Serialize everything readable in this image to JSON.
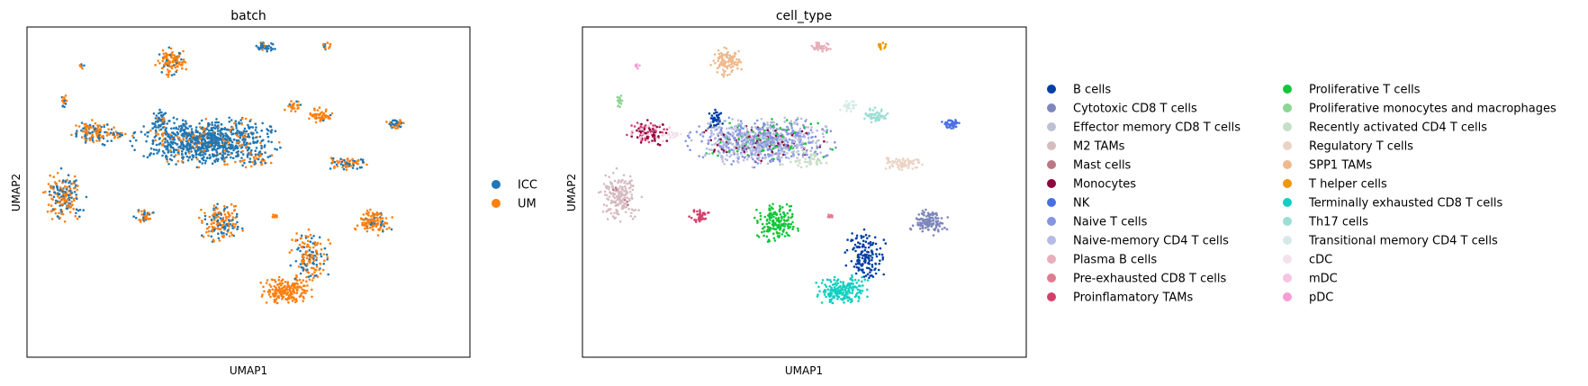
{
  "chart_data": [
    {
      "type": "scatter",
      "title": "batch",
      "xlabel": "UMAP1",
      "ylabel": "UMAP2",
      "xlim": [
        0,
        1
      ],
      "ylim": [
        0,
        1
      ],
      "grid": false,
      "legend": "right",
      "series": [
        {
          "name": "ICC",
          "color": "#1f77b4"
        },
        {
          "name": "UM",
          "color": "#ff7f0e"
        }
      ]
    },
    {
      "type": "scatter",
      "title": "cell_type",
      "xlabel": "UMAP1",
      "ylabel": "UMAP2",
      "xlim": [
        0,
        1
      ],
      "ylim": [
        0,
        1
      ],
      "grid": false,
      "legend": "right",
      "series": [
        {
          "name": "B cells",
          "color": "#023fa5"
        },
        {
          "name": "Cytotoxic CD8 T cells",
          "color": "#7d87b9"
        },
        {
          "name": "Effector memory CD8 T cells",
          "color": "#bec1d4"
        },
        {
          "name": "M2 TAMs",
          "color": "#d6bcc0"
        },
        {
          "name": "Mast cells",
          "color": "#bb7784"
        },
        {
          "name": "Monocytes",
          "color": "#8e063b"
        },
        {
          "name": "NK",
          "color": "#4a6fe3"
        },
        {
          "name": "Naive T cells",
          "color": "#8595e1"
        },
        {
          "name": "Naive-memory CD4 T cells",
          "color": "#b5bbe3"
        },
        {
          "name": "Plasma B cells",
          "color": "#e6afb9"
        },
        {
          "name": "Pre-exhausted CD8 T cells",
          "color": "#e07b91"
        },
        {
          "name": "Proinflamatory TAMs",
          "color": "#d33f6a"
        },
        {
          "name": "Proliferative T cells",
          "color": "#11c638"
        },
        {
          "name": "Proliferative monocytes and macrophages",
          "color": "#8dd593"
        },
        {
          "name": "Recently activated CD4 T cells",
          "color": "#c6dec7"
        },
        {
          "name": "Regulatory T cells",
          "color": "#ead3c6"
        },
        {
          "name": "SPP1 TAMs",
          "color": "#f0b98d"
        },
        {
          "name": "T helper cells",
          "color": "#ef9708"
        },
        {
          "name": "Terminally exhausted CD8 T cells",
          "color": "#0fcfc0"
        },
        {
          "name": "Th17 cells",
          "color": "#9cded6"
        },
        {
          "name": "Transitional memory CD4 T cells",
          "color": "#d5eae7"
        },
        {
          "name": "cDC",
          "color": "#f3e1eb"
        },
        {
          "name": "mDC",
          "color": "#f6c4e1"
        },
        {
          "name": "pDC",
          "color": "#f79cd4"
        }
      ]
    }
  ]
}
